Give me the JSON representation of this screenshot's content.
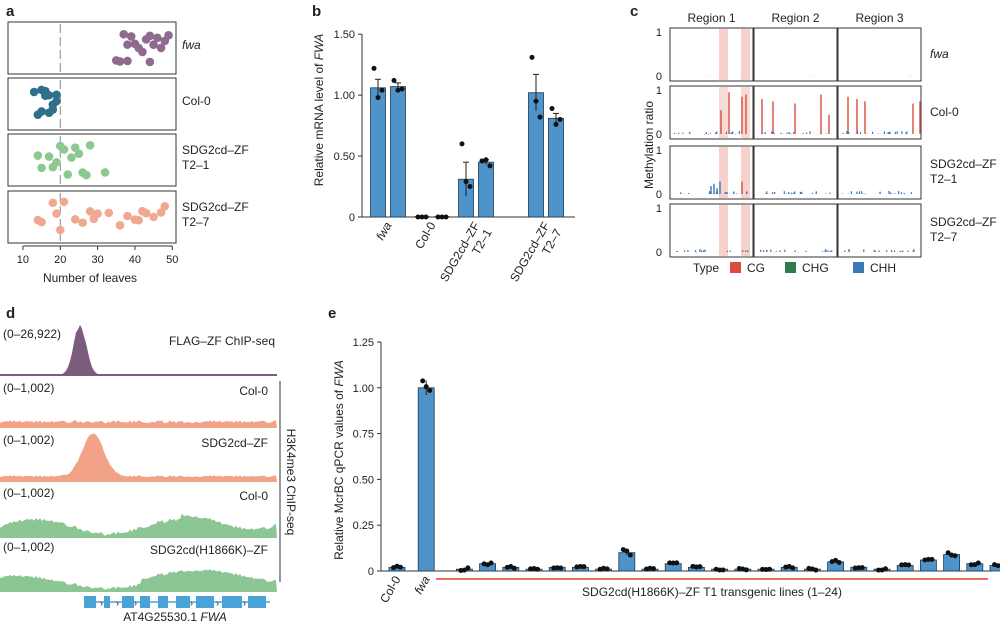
{
  "figure": {
    "colors": {
      "purple": "#8e6a8e",
      "teal": "#2f6f8a",
      "green": "#8cc98f",
      "salmon": "#f0a98f",
      "bar": "#4e93c9",
      "cg": "#d94b3f",
      "chg": "#2e7d4f",
      "chh": "#3a78b8",
      "bed": "#f7d2cc",
      "chip_flag": "#7c5b7e",
      "chip_salmon": "#f2a286",
      "chip_green": "#8dc695",
      "gene": "#4aa3d6"
    },
    "panels": {
      "a": {
        "label": "a",
        "xlabel": "Number of leaves",
        "xticks": [
          "10",
          "20",
          "30",
          "40",
          "50"
        ],
        "xlim": [
          6,
          51
        ],
        "dashed_ref": 20,
        "groups": [
          {
            "name": "fwa",
            "italic": true,
            "color_key": "purple",
            "values": [
              35,
              36,
              37,
              38,
              38,
              39,
              40,
              41,
              42,
              43,
              44,
              44,
              45,
              46,
              47,
              48,
              49
            ]
          },
          {
            "name": "Col-0",
            "italic": false,
            "color_key": "teal",
            "values": [
              13,
              14,
              15,
              15,
              16,
              16,
              17,
              17,
              18,
              18,
              19,
              19
            ]
          },
          {
            "name": "SDG2cd–ZF T2–1",
            "italic": false,
            "color_key": "green",
            "values": [
              14,
              15,
              17,
              18,
              19,
              20,
              21,
              22,
              23,
              24,
              25,
              26,
              27,
              28,
              32
            ]
          },
          {
            "name": "SDG2cd–ZF T2–7",
            "italic": false,
            "color_key": "salmon",
            "values": [
              14,
              15,
              18,
              19,
              20,
              21,
              24,
              26,
              28,
              29,
              30,
              33,
              36,
              38,
              40,
              41,
              42,
              43,
              45,
              47,
              48
            ]
          }
        ]
      },
      "b": {
        "label": "b",
        "ylabel": "Relative mRNA level of FWA",
        "yticks": [
          "0",
          "0.50",
          "1.00",
          "1.50"
        ],
        "ylim": [
          0,
          1.6
        ],
        "groups": [
          "fwa",
          "Col-0",
          "SDG2cd–ZF T2–1",
          "SDG2cd–ZF T2–7"
        ],
        "bars": [
          {
            "group": 0,
            "value": 1.06,
            "err": 0.07,
            "points": [
              1.22,
              0.98,
              1.04
            ]
          },
          {
            "group": 0,
            "value": 1.07,
            "err": 0.03,
            "points": [
              1.12,
              1.04,
              1.05
            ]
          },
          {
            "group": 1,
            "value": 0.003,
            "err": 0.0,
            "points": [
              0.0,
              0.0,
              0.0
            ]
          },
          {
            "group": 1,
            "value": 0.003,
            "err": 0.0,
            "points": [
              0.0,
              0.0,
              0.0
            ]
          },
          {
            "group": 2,
            "value": 0.31,
            "err": 0.14,
            "points": [
              0.6,
              0.29,
              0.25
            ]
          },
          {
            "group": 2,
            "value": 0.45,
            "err": 0.02,
            "points": [
              0.46,
              0.47,
              0.42
            ]
          },
          {
            "group": 3,
            "value": 1.02,
            "err": 0.15,
            "points": [
              1.31,
              0.95,
              0.82
            ]
          },
          {
            "group": 3,
            "value": 0.81,
            "err": 0.04,
            "points": [
              0.89,
              0.76,
              0.8
            ]
          }
        ]
      },
      "c": {
        "label": "c",
        "regions": [
          "Region 1",
          "Region 2",
          "Region 3"
        ],
        "rows": [
          "fwa",
          "Col-0",
          "SDG2cd–ZF T2–1",
          "SDG2cd–ZF T2–7"
        ],
        "ylabel": "Methylation ratio",
        "yticks": [
          "0",
          "1"
        ],
        "legend_title": "Type",
        "legend": [
          {
            "name": "CG",
            "color_key": "cg"
          },
          {
            "name": "CHG",
            "color_key": "chg"
          },
          {
            "name": "CHH",
            "color_key": "chh"
          }
        ],
        "cg_spikes": {
          "col0_region1": [
            0.55,
            0.95,
            0.85,
            0.9
          ],
          "col0_region2": [
            0.8,
            0.75,
            0.7,
            0.9,
            0.45
          ],
          "col0_region3": [
            0.85,
            0.8,
            0.75,
            0.7,
            0.75
          ],
          "t21_region1": [
            0.3
          ]
        }
      },
      "d": {
        "label": "d",
        "tracks": [
          {
            "range": "(0–26,922)",
            "name": "FLAG–ZF ChIP-seq",
            "color_key": "chip_flag",
            "kind": "flag"
          },
          {
            "range": "(0–1,002)",
            "name": "Col-0",
            "color_key": "chip_salmon",
            "kind": "flat"
          },
          {
            "range": "(0–1,002)",
            "name": "SDG2cd–ZF",
            "color_key": "chip_salmon",
            "kind": "peak"
          },
          {
            "range": "(0–1,002)",
            "name": "Col-0",
            "color_key": "chip_green",
            "kind": "wavy"
          },
          {
            "range": "(0–1,002)",
            "name": "SDG2cd(H1866K)–ZF",
            "color_key": "chip_green",
            "kind": "wavy2"
          }
        ],
        "bracket_label": "H3K4me3 ChIP-seq",
        "gene_id": "AT4G25530.1",
        "gene_name": "FWA"
      },
      "e": {
        "label": "e",
        "ylabel": "Relative McrBC qPCR values of FWA",
        "yticks": [
          "0",
          "0.25",
          "0.50",
          "0.75",
          "1.00",
          "1.25"
        ],
        "ylim": [
          0,
          1.25
        ],
        "xlabels": [
          "Col-0",
          "fwa"
        ],
        "transgenic_label": "SDG2cd(H1866K)–ZF T1 transgenic lines (1–24)",
        "values": [
          0.02,
          1.0,
          0.01,
          0.04,
          0.02,
          0.01,
          0.02,
          0.02,
          0.01,
          0.1,
          0.01,
          0.04,
          0.02,
          0.01,
          0.01,
          0.01,
          0.02,
          0.01,
          0.05,
          0.02,
          0.01,
          0.03,
          0.06,
          0.09,
          0.04,
          0.03
        ],
        "err": [
          0.005,
          0.04,
          0.005,
          0.005,
          0.004,
          0.004,
          0.004,
          0.004,
          0.004,
          0.012,
          0.004,
          0.005,
          0.004,
          0.004,
          0.004,
          0.004,
          0.004,
          0.004,
          0.006,
          0.004,
          0.004,
          0.005,
          0.005,
          0.01,
          0.005,
          0.005
        ]
      }
    }
  }
}
